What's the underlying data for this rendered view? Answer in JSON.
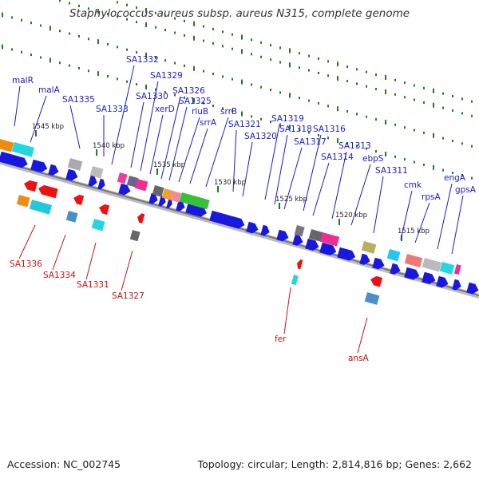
{
  "title": "Staphylococcus aureus subsp. aureus N315, complete genome",
  "footer": {
    "accession": "Accession: NC_002745",
    "topology": "Topology: circular; Length: 2,814,816 bp; Genes: 2,662"
  },
  "colors": {
    "plus_label": "#1a1acc",
    "minus_label": "#cc1111",
    "backbone": "#888888",
    "gene_arrow": "#1818e0",
    "tick": "#1f7a1f"
  },
  "kbp_labels": [
    "1545 kbp",
    "1540 kbp",
    "1535 kbp",
    "1530 kbp",
    "1525 kbp",
    "1520 kbp",
    "1515 kbp"
  ],
  "plus_genes": [
    "malR",
    "malA",
    "SA1335",
    "SA1333",
    "SA1332",
    "SA1330",
    "SA1329",
    "xerD",
    "SA1326",
    "SA1325",
    "rluB",
    "srrA",
    "srrB",
    "SA1321",
    "SA1320",
    "SA1319",
    "SA1318",
    "SA1317",
    "SA1316",
    "SA1314",
    "SA1313",
    "ebpS",
    "SA1311",
    "cmk",
    "rpsA",
    "engA",
    "gpsA"
  ],
  "minus_genes": [
    "SA1336",
    "SA1334",
    "SA1331",
    "SA1327",
    "fer",
    "ansA"
  ]
}
